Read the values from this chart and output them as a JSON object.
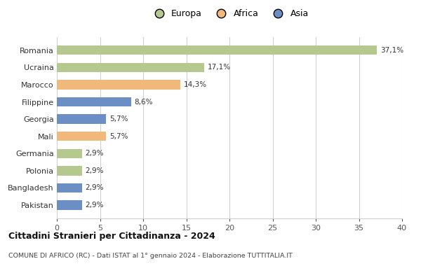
{
  "categories": [
    "Romania",
    "Ucraina",
    "Marocco",
    "Filippine",
    "Georgia",
    "Mali",
    "Germania",
    "Polonia",
    "Bangladesh",
    "Pakistan"
  ],
  "values": [
    37.1,
    17.1,
    14.3,
    8.6,
    5.7,
    5.7,
    2.9,
    2.9,
    2.9,
    2.9
  ],
  "labels": [
    "37,1%",
    "17,1%",
    "14,3%",
    "8,6%",
    "5,7%",
    "5,7%",
    "2,9%",
    "2,9%",
    "2,9%",
    "2,9%"
  ],
  "colors": [
    "#b5c98e",
    "#b5c98e",
    "#f0b87a",
    "#6b8fc4",
    "#6b8fc4",
    "#f0b87a",
    "#b5c98e",
    "#b5c98e",
    "#6b8fc4",
    "#6b8fc4"
  ],
  "legend_labels": [
    "Europa",
    "Africa",
    "Asia"
  ],
  "legend_colors": [
    "#b5c98e",
    "#f0b87a",
    "#6b8fc4"
  ],
  "title": "Cittadini Stranieri per Cittadinanza - 2024",
  "subtitle": "COMUNE DI AFRICO (RC) - Dati ISTAT al 1° gennaio 2024 - Elaborazione TUTTITALIA.IT",
  "xlim": [
    0,
    40
  ],
  "xticks": [
    0,
    5,
    10,
    15,
    20,
    25,
    30,
    35,
    40
  ],
  "background_color": "#ffffff",
  "grid_color": "#d0d0d0"
}
